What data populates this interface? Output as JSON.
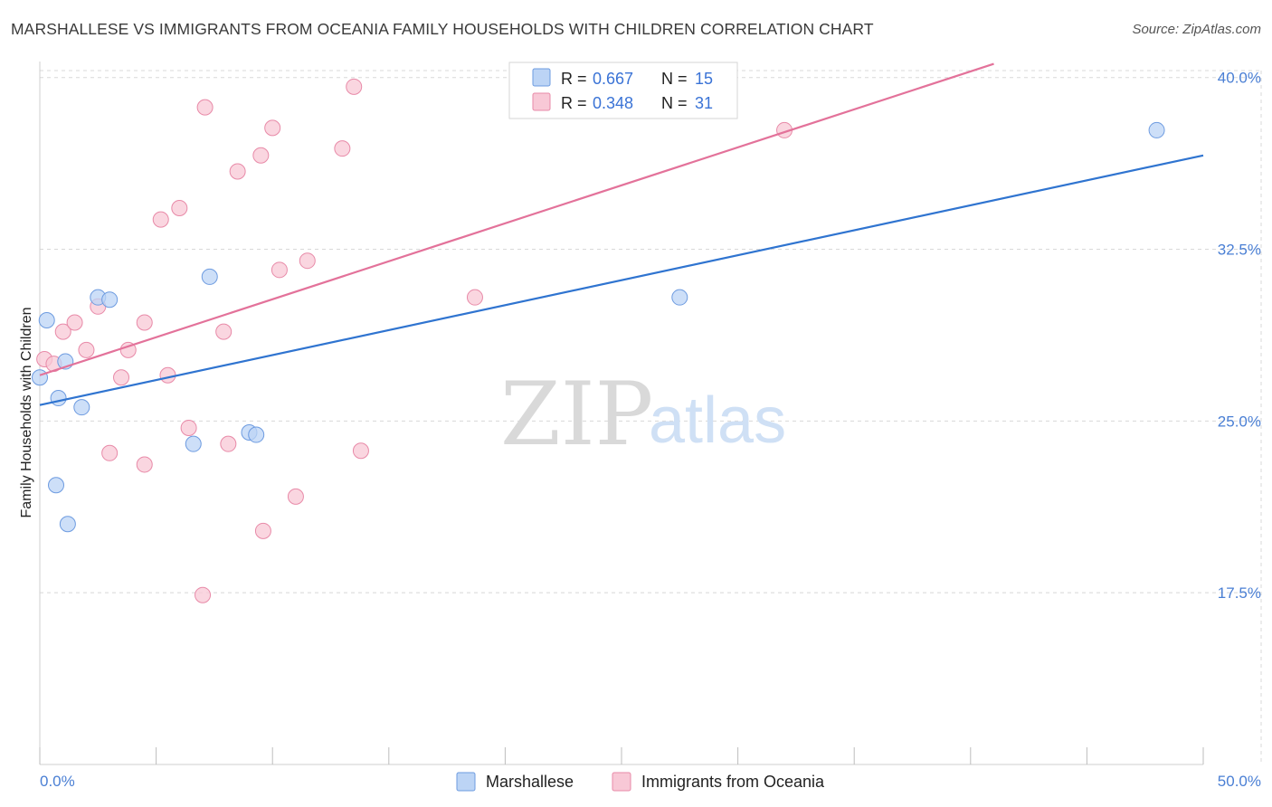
{
  "title": "MARSHALLESE VS IMMIGRANTS FROM OCEANIA FAMILY HOUSEHOLDS WITH CHILDREN CORRELATION CHART",
  "source": "Source: ZipAtlas.com",
  "watermark": {
    "zip": "ZIP",
    "atlas": "atlas"
  },
  "colors": {
    "marshallese_fill": "#bcd4f5",
    "marshallese_stroke": "#6d9be0",
    "marshallese_line": "#2f74d0",
    "oceania_fill": "#f8c8d6",
    "oceania_stroke": "#e88aa8",
    "oceania_line": "#e3729a",
    "tick_label": "#4a7fd4",
    "grid": "#d8d8d8"
  },
  "legend": {
    "rows": [
      {
        "r_label": "R = ",
        "r_value": "0.667",
        "n_label": "N = ",
        "n_value": "15"
      },
      {
        "r_label": "R = ",
        "r_value": "0.348",
        "n_label": "N = ",
        "n_value": "31"
      }
    ]
  },
  "bottom_legend": [
    "Marshallese",
    "Immigrants from Oceania"
  ],
  "chart_data": {
    "type": "scatter",
    "title": "MARSHALLESE VS IMMIGRANTS FROM OCEANIA FAMILY HOUSEHOLDS WITH CHILDREN CORRELATION CHART",
    "xlabel": "",
    "ylabel": "Family Households with Children",
    "xlim": [
      0,
      50
    ],
    "ylim": [
      10.0,
      40.7
    ],
    "x_tick_labels": [
      "0.0%",
      "50.0%"
    ],
    "y_ticks": [
      17.5,
      25.0,
      32.5,
      40.0
    ],
    "y_tick_labels": [
      "17.5%",
      "25.0%",
      "32.5%",
      "40.0%"
    ],
    "grid": true,
    "legend_position": "top-center",
    "series": [
      {
        "name": "Marshallese",
        "R": 0.667,
        "N": 15,
        "trend": {
          "x": [
            0,
            50
          ],
          "y": [
            25.7,
            36.6
          ]
        },
        "points": [
          {
            "x": 0.3,
            "y": 29.4
          },
          {
            "x": 0.8,
            "y": 26.0
          },
          {
            "x": 1.1,
            "y": 27.6
          },
          {
            "x": 1.8,
            "y": 25.6
          },
          {
            "x": 2.5,
            "y": 30.4
          },
          {
            "x": 3.0,
            "y": 30.3
          },
          {
            "x": 0.0,
            "y": 26.9
          },
          {
            "x": 0.7,
            "y": 22.2
          },
          {
            "x": 1.2,
            "y": 20.5
          },
          {
            "x": 7.3,
            "y": 31.3
          },
          {
            "x": 6.6,
            "y": 24.0
          },
          {
            "x": 9.0,
            "y": 24.5
          },
          {
            "x": 9.3,
            "y": 24.4
          },
          {
            "x": 27.5,
            "y": 30.4
          },
          {
            "x": 48.0,
            "y": 37.7
          }
        ]
      },
      {
        "name": "Immigrants from Oceania",
        "R": 0.348,
        "N": 31,
        "trend": {
          "x": [
            0,
            41.0
          ],
          "y": [
            27.0,
            40.6
          ]
        },
        "points": [
          {
            "x": 0.2,
            "y": 27.7
          },
          {
            "x": 0.6,
            "y": 27.5
          },
          {
            "x": 1.0,
            "y": 28.9
          },
          {
            "x": 1.5,
            "y": 29.3
          },
          {
            "x": 2.0,
            "y": 28.1
          },
          {
            "x": 2.5,
            "y": 30.0
          },
          {
            "x": 3.5,
            "y": 26.9
          },
          {
            "x": 3.8,
            "y": 28.1
          },
          {
            "x": 4.5,
            "y": 23.1
          },
          {
            "x": 4.5,
            "y": 29.3
          },
          {
            "x": 5.2,
            "y": 33.8
          },
          {
            "x": 5.5,
            "y": 27.0
          },
          {
            "x": 6.0,
            "y": 34.3
          },
          {
            "x": 6.4,
            "y": 24.7
          },
          {
            "x": 7.1,
            "y": 38.7
          },
          {
            "x": 7.0,
            "y": 17.4
          },
          {
            "x": 7.9,
            "y": 28.9
          },
          {
            "x": 8.1,
            "y": 24.0
          },
          {
            "x": 8.5,
            "y": 35.9
          },
          {
            "x": 9.5,
            "y": 36.6
          },
          {
            "x": 10.0,
            "y": 37.8
          },
          {
            "x": 9.6,
            "y": 20.2
          },
          {
            "x": 10.3,
            "y": 31.6
          },
          {
            "x": 11.0,
            "y": 21.7
          },
          {
            "x": 11.5,
            "y": 32.0
          },
          {
            "x": 13.0,
            "y": 36.9
          },
          {
            "x": 13.5,
            "y": 39.6
          },
          {
            "x": 13.8,
            "y": 23.7
          },
          {
            "x": 18.7,
            "y": 30.4
          },
          {
            "x": 32.0,
            "y": 37.7
          },
          {
            "x": 3.0,
            "y": 23.6
          }
        ]
      }
    ]
  }
}
